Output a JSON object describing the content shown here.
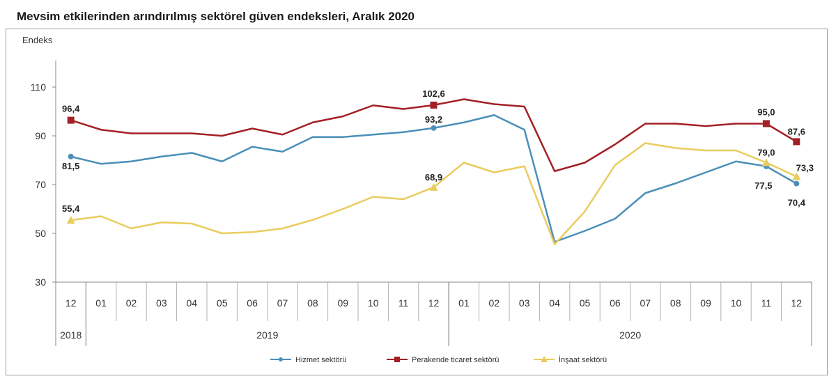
{
  "chart_data": {
    "type": "line",
    "title": "Mevsim etkilerinden arındırılmış sektörel güven endeksleri, Aralık 2020",
    "ylabel": "Endeks",
    "ylim": [
      30,
      110
    ],
    "yticks": [
      30,
      50,
      70,
      90,
      110
    ],
    "categories": [
      "12",
      "01",
      "02",
      "03",
      "04",
      "05",
      "06",
      "07",
      "08",
      "09",
      "10",
      "11",
      "12",
      "01",
      "02",
      "03",
      "04",
      "05",
      "06",
      "07",
      "08",
      "09",
      "10",
      "11",
      "12"
    ],
    "year_groups": [
      {
        "label": "2018",
        "start": 0,
        "end": 0
      },
      {
        "label": "2019",
        "start": 1,
        "end": 12
      },
      {
        "label": "2020",
        "start": 13,
        "end": 24
      }
    ],
    "grid": false,
    "legend_position": "bottom",
    "series": [
      {
        "name": "Hizmet sektörü",
        "color": "#4a8fb8",
        "marker": "circle",
        "values": [
          81.5,
          78.5,
          79.5,
          81.5,
          83.0,
          79.5,
          85.5,
          83.5,
          89.5,
          89.5,
          90.5,
          91.5,
          93.2,
          95.5,
          98.5,
          92.5,
          46.5,
          51.0,
          56.0,
          66.5,
          70.5,
          75.0,
          79.5,
          77.5,
          70.4
        ],
        "labels": [
          {
            "i": 0,
            "text": "81,5"
          },
          {
            "i": 12,
            "text": "93,2"
          },
          {
            "i": 23,
            "text": "77,5"
          },
          {
            "i": 24,
            "text": "70,4"
          }
        ]
      },
      {
        "name": "Perakende ticaret sektörü",
        "color": "#a32025",
        "marker": "square",
        "values": [
          96.4,
          92.5,
          91.0,
          91.0,
          91.0,
          90.0,
          93.0,
          90.5,
          95.5,
          98.0,
          102.5,
          101.0,
          102.6,
          105.0,
          103.0,
          102.0,
          75.5,
          79.0,
          86.5,
          95.0,
          95.0,
          94.0,
          95.0,
          95.0,
          87.6
        ],
        "labels": [
          {
            "i": 0,
            "text": "96,4"
          },
          {
            "i": 12,
            "text": "102,6"
          },
          {
            "i": 23,
            "text": "95,0"
          },
          {
            "i": 24,
            "text": "87,6"
          }
        ]
      },
      {
        "name": "İnşaat sektörü",
        "color": "#eacc5e",
        "marker": "triangle",
        "values": [
          55.4,
          57.0,
          52.0,
          54.5,
          54.0,
          50.0,
          50.5,
          52.0,
          55.5,
          60.0,
          65.0,
          64.0,
          68.9,
          79.0,
          75.0,
          77.5,
          45.5,
          59.0,
          78.0,
          87.0,
          85.0,
          84.0,
          84.0,
          79.0,
          73.3
        ],
        "labels": [
          {
            "i": 0,
            "text": "55,4"
          },
          {
            "i": 12,
            "text": "68,9"
          },
          {
            "i": 23,
            "text": "79,0"
          },
          {
            "i": 24,
            "text": "73,3"
          }
        ]
      }
    ]
  }
}
